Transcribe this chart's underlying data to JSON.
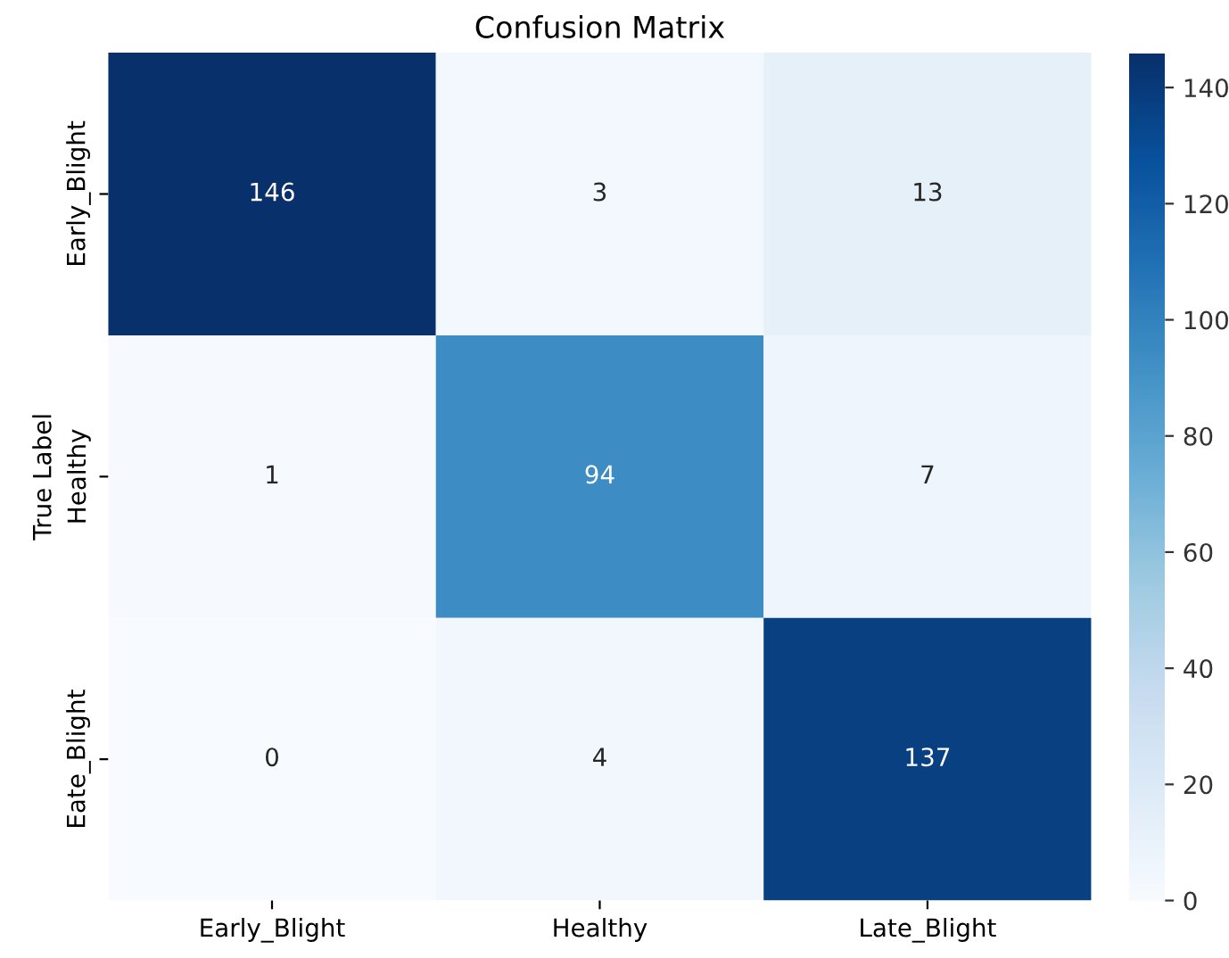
{
  "chart_data": {
    "type": "heatmap",
    "title": "Confusion Matrix",
    "ylabel": "True Label",
    "categories": [
      "Early_Blight",
      "Healthy",
      "Late_Blight"
    ],
    "y_categories": [
      "Early_Blight",
      "Healthy",
      "Eate_Blight"
    ],
    "cells": [
      [
        146,
        3,
        13
      ],
      [
        1,
        94,
        7
      ],
      [
        0,
        4,
        137
      ]
    ],
    "clim": [
      0,
      146
    ],
    "cticks": [
      0,
      20,
      40,
      60,
      80,
      100,
      120,
      140
    ],
    "data_labels": true
  }
}
